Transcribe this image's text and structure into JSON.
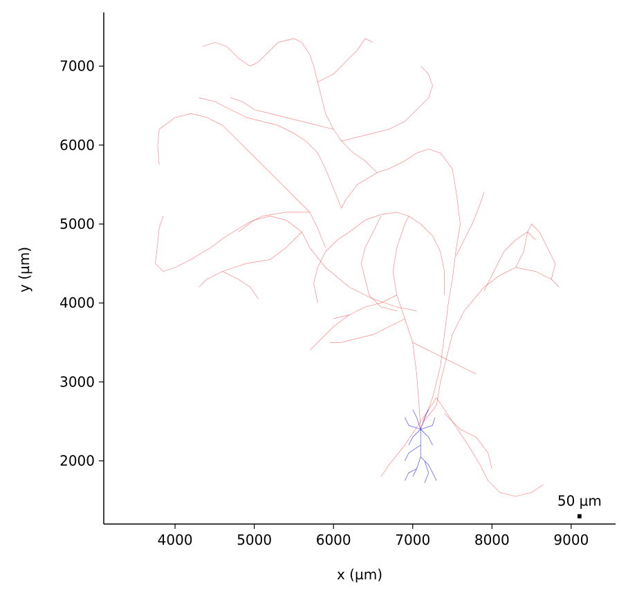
{
  "chart_data": {
    "type": "line",
    "title": "",
    "xlabel": "x (µm)",
    "ylabel": "y (µm)",
    "xlim": [
      3100,
      9560
    ],
    "ylim": [
      1200,
      7680
    ],
    "x_ticks": [
      4000,
      5000,
      6000,
      7000,
      8000,
      9000
    ],
    "y_ticks": [
      2000,
      3000,
      4000,
      5000,
      6000,
      7000
    ],
    "grid": false,
    "legend": "none",
    "scale_bar": {
      "label": "50 µm",
      "length": 50,
      "x": 9080,
      "y": 1290
    },
    "series": [
      {
        "color": "#ff0000",
        "paths": [
          [
            [
              7100,
              2400
            ],
            [
              7080,
              2700
            ],
            [
              7050,
              3100
            ],
            [
              7000,
              3500
            ],
            [
              6900,
              3800
            ],
            [
              6800,
              4100
            ],
            [
              6750,
              4400
            ],
            [
              6800,
              4700
            ],
            [
              6900,
              5000
            ],
            [
              6950,
              5100
            ]
          ],
          [
            [
              7120,
              2450
            ],
            [
              7250,
              2800
            ],
            [
              7350,
              3200
            ],
            [
              7400,
              3600
            ],
            [
              7450,
              4000
            ],
            [
              7500,
              4300
            ],
            [
              7550,
              4700
            ],
            [
              7600,
              5000
            ],
            [
              7550,
              5400
            ],
            [
              7500,
              5700
            ],
            [
              7350,
              5900
            ],
            [
              7200,
              5950
            ],
            [
              7050,
              5900
            ],
            [
              6900,
              5800
            ],
            [
              6700,
              5700
            ],
            [
              6550,
              5650
            ],
            [
              6300,
              5500
            ],
            [
              6150,
              5300
            ],
            [
              6100,
              5200
            ]
          ],
          [
            [
              7140,
              2500
            ],
            [
              7300,
              2700
            ],
            [
              7350,
              3000
            ],
            [
              7450,
              3400
            ],
            [
              7500,
              3600
            ],
            [
              7650,
              3900
            ],
            [
              7900,
              4200
            ],
            [
              8100,
              4350
            ],
            [
              8300,
              4450
            ],
            [
              8550,
              4400
            ],
            [
              8750,
              4300
            ],
            [
              8850,
              4200
            ]
          ],
          [
            [
              7900,
              4150
            ],
            [
              8050,
              4450
            ],
            [
              8150,
              4650
            ],
            [
              8300,
              4800
            ],
            [
              8450,
              4900
            ],
            [
              8550,
              4800
            ]
          ],
          [
            [
              8300,
              4450
            ],
            [
              8400,
              4650
            ],
            [
              8450,
              4900
            ],
            [
              8500,
              5000
            ],
            [
              8600,
              4900
            ],
            [
              8700,
              4700
            ],
            [
              8800,
              4500
            ],
            [
              8750,
              4300
            ]
          ],
          [
            [
              7550,
              4600
            ],
            [
              7650,
              4800
            ],
            [
              7750,
              5000
            ],
            [
              7850,
              5250
            ],
            [
              7900,
              5400
            ]
          ],
          [
            [
              6950,
              5100
            ],
            [
              6800,
              5150
            ],
            [
              6600,
              5120
            ],
            [
              6400,
              5050
            ],
            [
              6200,
              4900
            ],
            [
              6050,
              4800
            ],
            [
              5900,
              4650
            ],
            [
              5800,
              4450
            ],
            [
              5750,
              4250
            ],
            [
              5780,
              4100
            ],
            [
              5800,
              4000
            ]
          ],
          [
            [
              6950,
              5100
            ],
            [
              7100,
              5000
            ],
            [
              7250,
              4850
            ],
            [
              7350,
              4650
            ],
            [
              7400,
              4400
            ],
            [
              7400,
              4100
            ]
          ],
          [
            [
              6600,
              5100
            ],
            [
              6500,
              4900
            ],
            [
              6400,
              4700
            ],
            [
              6350,
              4500
            ],
            [
              6400,
              4300
            ],
            [
              6450,
              4100
            ],
            [
              6600,
              3950
            ],
            [
              6800,
              3900
            ]
          ],
          [
            [
              6900,
              3800
            ],
            [
              6700,
              3700
            ],
            [
              6500,
              3600
            ],
            [
              6300,
              3550
            ],
            [
              6100,
              3500
            ],
            [
              5950,
              3500
            ]
          ],
          [
            [
              7000,
              3500
            ],
            [
              7200,
              3400
            ],
            [
              7400,
              3300
            ],
            [
              7600,
              3200
            ],
            [
              7800,
              3100
            ]
          ],
          [
            [
              6800,
              4100
            ],
            [
              6600,
              4000
            ],
            [
              6400,
              3950
            ],
            [
              6200,
              3850
            ],
            [
              6000,
              3800
            ]
          ],
          [
            [
              7300,
              2800
            ],
            [
              7500,
              2500
            ],
            [
              7700,
              2200
            ],
            [
              7850,
              1950
            ],
            [
              7950,
              1750
            ],
            [
              8100,
              1600
            ],
            [
              8300,
              1550
            ],
            [
              8500,
              1600
            ],
            [
              8650,
              1700
            ]
          ],
          [
            [
              7400,
              2600
            ],
            [
              7600,
              2400
            ],
            [
              7800,
              2300
            ],
            [
              7950,
              2100
            ],
            [
              8000,
              1900
            ]
          ],
          [
            [
              7050,
              3900
            ],
            [
              6800,
              3950
            ],
            [
              6500,
              4050
            ],
            [
              6200,
              4200
            ],
            [
              5900,
              4450
            ],
            [
              5700,
              4700
            ],
            [
              5600,
              4900
            ],
            [
              5400,
              5050
            ],
            [
              5200,
              5100
            ],
            [
              5000,
              5050
            ],
            [
              4800,
              4900
            ]
          ],
          [
            [
              5600,
              4900
            ],
            [
              5400,
              4700
            ],
            [
              5200,
              4550
            ],
            [
              4900,
              4500
            ],
            [
              4600,
              4400
            ],
            [
              4400,
              4300
            ],
            [
              4300,
              4200
            ]
          ],
          [
            [
              4600,
              4400
            ],
            [
              4800,
              4300
            ],
            [
              4950,
              4200
            ],
            [
              5050,
              4050
            ]
          ],
          [
            [
              5900,
              4700
            ],
            [
              5800,
              4950
            ],
            [
              5700,
              5150
            ],
            [
              5500,
              5350
            ],
            [
              5300,
              5550
            ],
            [
              5100,
              5750
            ],
            [
              4900,
              5950
            ],
            [
              4750,
              6100
            ],
            [
              4600,
              6250
            ],
            [
              4400,
              6350
            ],
            [
              4200,
              6400
            ],
            [
              4000,
              6350
            ],
            [
              3800,
              6200
            ],
            [
              3780,
              6000
            ],
            [
              3800,
              5750
            ]
          ],
          [
            [
              5700,
              5150
            ],
            [
              5400,
              5150
            ],
            [
              5100,
              5100
            ],
            [
              4900,
              5000
            ],
            [
              4650,
              4850
            ],
            [
              4450,
              4700
            ],
            [
              4200,
              4550
            ],
            [
              4000,
              4450
            ],
            [
              3850,
              4400
            ],
            [
              3750,
              4500
            ],
            [
              3780,
              4750
            ],
            [
              3800,
              4950
            ],
            [
              3850,
              5100
            ]
          ],
          [
            [
              6100,
              5200
            ],
            [
              6000,
              5450
            ],
            [
              5900,
              5700
            ],
            [
              5800,
              5900
            ],
            [
              5650,
              6050
            ],
            [
              5500,
              6150
            ],
            [
              5300,
              6250
            ],
            [
              5100,
              6300
            ],
            [
              4900,
              6350
            ],
            [
              4700,
              6450
            ],
            [
              4500,
              6550
            ],
            [
              4300,
              6600
            ]
          ],
          [
            [
              6550,
              5650
            ],
            [
              6400,
              5800
            ],
            [
              6250,
              5900
            ],
            [
              6100,
              6050
            ],
            [
              6000,
              6200
            ],
            [
              5900,
              6400
            ],
            [
              5850,
              6600
            ],
            [
              5800,
              6800
            ],
            [
              5750,
              7000
            ],
            [
              5700,
              7150
            ],
            [
              5600,
              7300
            ],
            [
              5500,
              7350
            ],
            [
              5300,
              7300
            ],
            [
              5150,
              7150
            ],
            [
              5050,
              7050
            ],
            [
              4950,
              7000
            ],
            [
              4800,
              7100
            ],
            [
              4650,
              7250
            ],
            [
              4500,
              7300
            ],
            [
              4350,
              7250
            ]
          ],
          [
            [
              5800,
              6800
            ],
            [
              6000,
              6900
            ],
            [
              6100,
              7000
            ],
            [
              6200,
              7100
            ],
            [
              6300,
              7200
            ],
            [
              6400,
              7350
            ],
            [
              6500,
              7300
            ]
          ],
          [
            [
              6100,
              6050
            ],
            [
              6300,
              6100
            ],
            [
              6500,
              6150
            ],
            [
              6700,
              6200
            ],
            [
              6900,
              6300
            ],
            [
              7000,
              6400
            ],
            [
              7100,
              6500
            ],
            [
              7200,
              6600
            ],
            [
              7250,
              6750
            ],
            [
              7200,
              6900
            ],
            [
              7100,
              7000
            ]
          ],
          [
            [
              6000,
              6200
            ],
            [
              5800,
              6250
            ],
            [
              5600,
              6300
            ],
            [
              5400,
              6350
            ],
            [
              5200,
              6400
            ],
            [
              5000,
              6450
            ],
            [
              4850,
              6550
            ],
            [
              4700,
              6600
            ]
          ],
          [
            [
              7300,
              2800
            ],
            [
              7100,
              2500
            ],
            [
              6900,
              2200
            ],
            [
              6700,
              1950
            ],
            [
              6600,
              1800
            ]
          ],
          [
            [
              6200,
              3850
            ],
            [
              6000,
              3700
            ],
            [
              5850,
              3550
            ],
            [
              5700,
              3400
            ]
          ]
        ]
      },
      {
        "color": "#0000ff",
        "paths": [
          [
            [
              7100,
              2400
            ],
            [
              7050,
              2550
            ],
            [
              7000,
              2650
            ]
          ],
          [
            [
              7100,
              2400
            ],
            [
              7150,
              2550
            ],
            [
              7200,
              2650
            ]
          ],
          [
            [
              7100,
              2400
            ],
            [
              6950,
              2450
            ],
            [
              6900,
              2550
            ]
          ],
          [
            [
              7100,
              2400
            ],
            [
              7250,
              2450
            ],
            [
              7280,
              2550
            ]
          ],
          [
            [
              7100,
              2400
            ],
            [
              7000,
              2300
            ],
            [
              6950,
              2200
            ]
          ],
          [
            [
              7100,
              2400
            ],
            [
              7200,
              2300
            ],
            [
              7250,
              2200
            ]
          ],
          [
            [
              7100,
              2400
            ],
            [
              7100,
              2200
            ],
            [
              7100,
              2050
            ],
            [
              7050,
              1900
            ],
            [
              7000,
              1800
            ]
          ],
          [
            [
              7100,
              2050
            ],
            [
              7200,
              1950
            ],
            [
              7250,
              1850
            ],
            [
              7300,
              1750
            ]
          ],
          [
            [
              7100,
              2200
            ],
            [
              6950,
              2100
            ],
            [
              6900,
              2000
            ]
          ],
          [
            [
              7050,
              1900
            ],
            [
              6950,
              1850
            ],
            [
              6900,
              1750
            ]
          ],
          [
            [
              7150,
              2000
            ],
            [
              7200,
              1850
            ],
            [
              7150,
              1720
            ]
          ]
        ]
      }
    ]
  }
}
